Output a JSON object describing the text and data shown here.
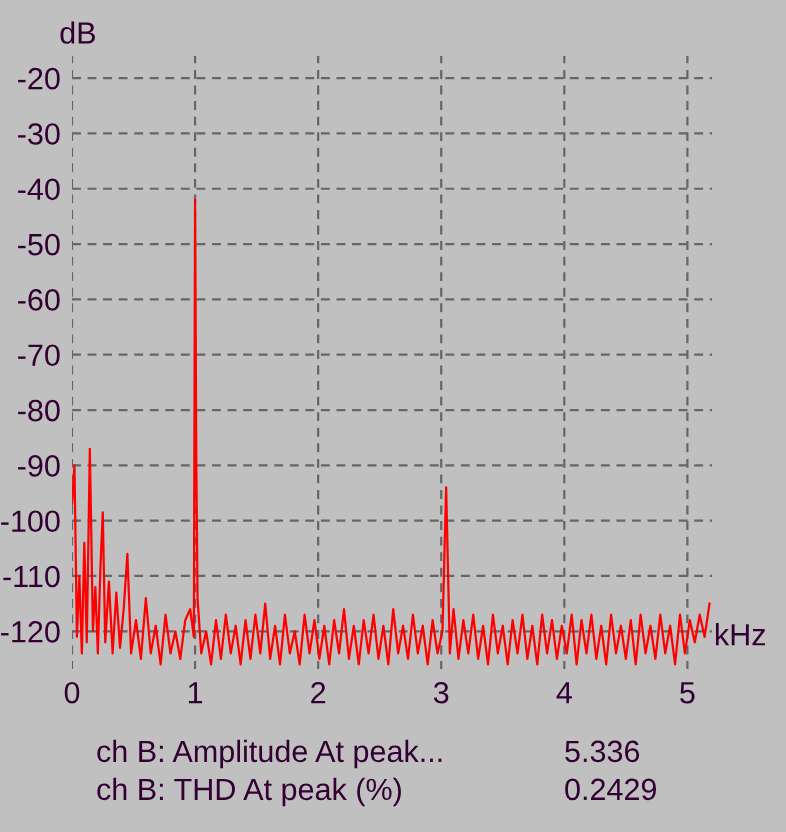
{
  "chart_data": {
    "type": "line",
    "xlabel": "kHz",
    "ylabel": "dB",
    "xlim": [
      0,
      5.2
    ],
    "xticks": [
      0,
      1,
      2,
      3,
      4,
      5
    ],
    "ylim": [
      -127,
      -16
    ],
    "yticks": [
      -20,
      -30,
      -40,
      -50,
      -60,
      -70,
      -80,
      -90,
      -100,
      -110,
      -120
    ],
    "grid": true,
    "series": [
      {
        "color": "#ff0000",
        "x": [
          0,
          0.02,
          0.04,
          0.06,
          0.08,
          0.1,
          0.12,
          0.145,
          0.17,
          0.19,
          0.21,
          0.23,
          0.25,
          0.27,
          0.3,
          0.33,
          0.36,
          0.39,
          0.42,
          0.45,
          0.48,
          0.52,
          0.56,
          0.6,
          0.64,
          0.68,
          0.72,
          0.76,
          0.8,
          0.84,
          0.88,
          0.92,
          0.96,
          0.99,
          1.0,
          1.01,
          1.02,
          1.05,
          1.09,
          1.13,
          1.17,
          1.21,
          1.25,
          1.29,
          1.33,
          1.37,
          1.41,
          1.45,
          1.49,
          1.53,
          1.57,
          1.61,
          1.65,
          1.69,
          1.73,
          1.77,
          1.81,
          1.85,
          1.89,
          1.93,
          1.97,
          2.01,
          2.05,
          2.09,
          2.13,
          2.17,
          2.21,
          2.25,
          2.29,
          2.33,
          2.37,
          2.41,
          2.45,
          2.49,
          2.53,
          2.57,
          2.61,
          2.65,
          2.69,
          2.73,
          2.77,
          2.81,
          2.85,
          2.89,
          2.93,
          2.97,
          3.01,
          3.04,
          3.07,
          3.1,
          3.14,
          3.18,
          3.22,
          3.26,
          3.3,
          3.34,
          3.38,
          3.42,
          3.46,
          3.5,
          3.54,
          3.58,
          3.62,
          3.66,
          3.7,
          3.74,
          3.78,
          3.82,
          3.86,
          3.9,
          3.94,
          3.98,
          4.02,
          4.06,
          4.1,
          4.14,
          4.18,
          4.22,
          4.26,
          4.3,
          4.34,
          4.38,
          4.42,
          4.46,
          4.5,
          4.54,
          4.58,
          4.62,
          4.66,
          4.7,
          4.74,
          4.78,
          4.82,
          4.86,
          4.9,
          4.94,
          4.98,
          5.02,
          5.06,
          5.1,
          5.14,
          5.18
        ],
        "values": [
          -97,
          -90,
          -121,
          -110,
          -124,
          -104,
          -122,
          -87,
          -120,
          -112,
          -124,
          -109,
          -98.5,
          -122,
          -111,
          -124,
          -113,
          -123,
          -116,
          -106,
          -124,
          -118,
          -125,
          -114,
          -124,
          -119,
          -126,
          -117,
          -124,
          -120,
          -125,
          -118,
          -116,
          -121,
          -42,
          -89,
          -114,
          -124,
          -120,
          -126,
          -118,
          -125,
          -117,
          -124,
          -119,
          -126,
          -118,
          -125,
          -117,
          -124,
          -115,
          -125,
          -119,
          -126,
          -117,
          -124,
          -120,
          -126,
          -117,
          -124,
          -118,
          -125,
          -119,
          -126,
          -118,
          -124,
          -116,
          -125,
          -119,
          -126,
          -118,
          -124,
          -117,
          -125,
          -119,
          -126,
          -116,
          -124,
          -119,
          -125,
          -117,
          -124,
          -119,
          -126,
          -118,
          -124,
          -120,
          -94,
          -124,
          -116,
          -125,
          -118,
          -124,
          -117,
          -125,
          -119,
          -126,
          -117,
          -124,
          -119,
          -126,
          -118,
          -124,
          -117,
          -125,
          -119,
          -126,
          -117,
          -124,
          -118,
          -125,
          -119,
          -124,
          -117,
          -126,
          -118,
          -124,
          -117,
          -125,
          -119,
          -126,
          -117,
          -124,
          -119,
          -125,
          -118,
          -126,
          -117,
          -124,
          -119,
          -125,
          -117,
          -124,
          -119,
          -126,
          -117,
          -124,
          -118,
          -122,
          -117,
          -121,
          -115
        ]
      }
    ],
    "annotations": [
      "ch B: Amplitude At peak...",
      "5.336",
      "ch B: THD At peak (%)",
      "0.2429"
    ]
  }
}
